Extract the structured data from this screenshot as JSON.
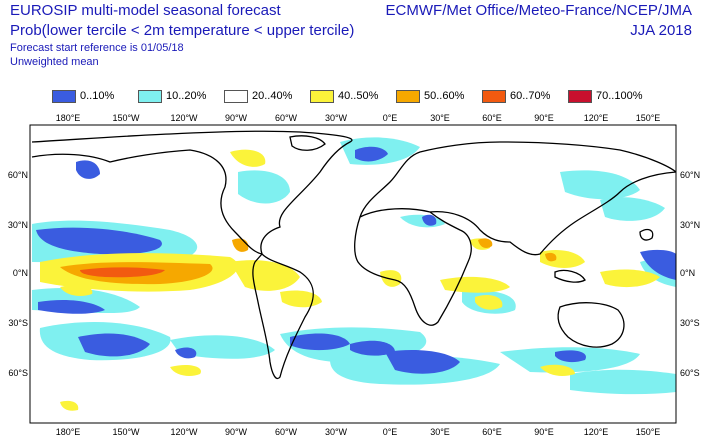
{
  "header": {
    "title_left": "EUROSIP multi-model seasonal forecast",
    "subtitle_left": "Prob(lower tercile < 2m temperature < upper tercile)",
    "reference": "Forecast start reference is 01/05/18",
    "weighting": "Unweighted mean",
    "title_right": "ECMWF/Met Office/Meteo-France/NCEP/JMA",
    "season": "JJA 2018"
  },
  "legend": [
    {
      "label": "0..10%",
      "color": "#3a5ce0"
    },
    {
      "label": "10..20%",
      "color": "#7ff0f0"
    },
    {
      "label": "20..40%",
      "color": "#ffffff"
    },
    {
      "label": "40..50%",
      "color": "#fbf33a"
    },
    {
      "label": "50..60%",
      "color": "#f6a800"
    },
    {
      "label": "60..70%",
      "color": "#f25a10"
    },
    {
      "label": "70..100%",
      "color": "#c8102e"
    }
  ],
  "axes": {
    "lon_ticks": [
      "180°E",
      "150°W",
      "120°W",
      "90°W",
      "60°W",
      "30°W",
      "0°E",
      "30°E",
      "60°E",
      "90°E",
      "120°E",
      "150°E"
    ],
    "lat_ticks": [
      "60°N",
      "30°N",
      "0°N",
      "30°S",
      "60°S"
    ]
  }
}
